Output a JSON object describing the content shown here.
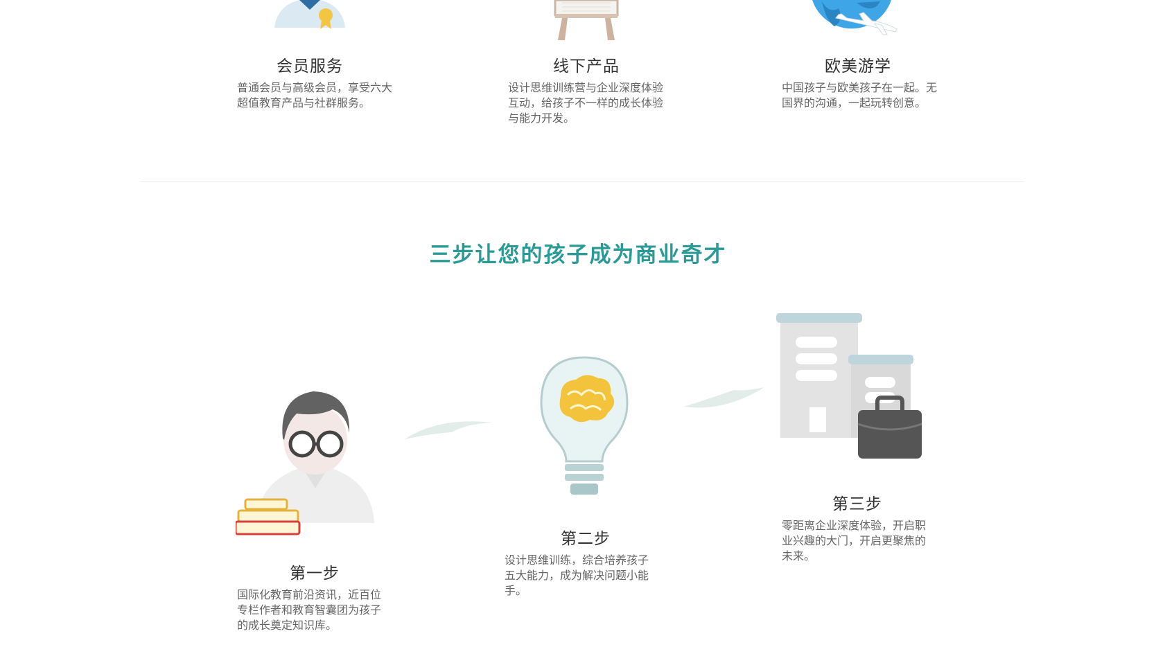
{
  "services": [
    {
      "icon": "membership-badge-icon",
      "title": "会员服务",
      "desc": "普通会员与高级会员，享受六大超值教育产品与社群服务。"
    },
    {
      "icon": "easel-board-icon",
      "title": "线下产品",
      "desc": "设计思维训练营与企业深度体验互动，给孩子不一样的成长体验与能力开发。"
    },
    {
      "icon": "globe-airplane-icon",
      "title": "欧美游学",
      "desc": "中国孩子与欧美孩子在一起。无国界的沟通，一起玩转创意。"
    }
  ],
  "section_heading": "三步让您的孩子成为商业奇才",
  "steps": [
    {
      "icon": "scholar-with-books-icon",
      "title": "第一步",
      "desc": "国际化教育前沿资讯，近百位专栏作者和教育智囊团为孩子的成长奠定知识库。"
    },
    {
      "icon": "lightbulb-brain-icon",
      "title": "第二步",
      "desc": "设计思维训练，综合培养孩子五大能力，成为解决问题小能手。"
    },
    {
      "icon": "office-building-briefcase-icon",
      "title": "第三步",
      "desc": "零距离企业深度体验，开启职业兴趣的大门，开启更聚焦的未来。"
    }
  ],
  "colors": {
    "accent": "#2a9a97",
    "text": "#333333",
    "muted": "#666666"
  }
}
